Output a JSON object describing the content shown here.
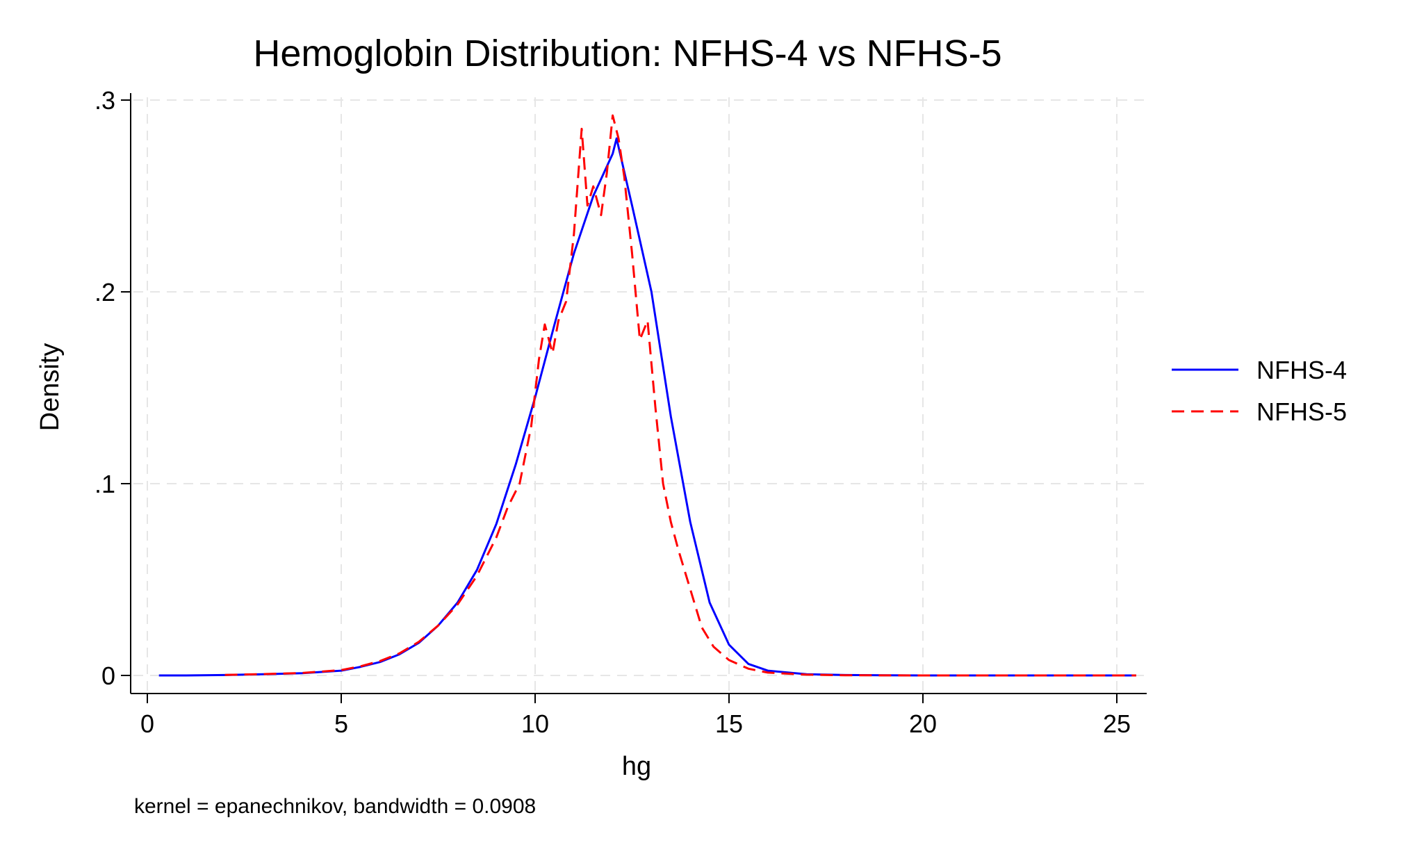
{
  "chart_data": {
    "type": "line",
    "title": "Hemoglobin Distribution: NFHS-4 vs NFHS-5",
    "xlabel": "hg",
    "ylabel": "Density",
    "note": "kernel = epanechnikov, bandwidth = 0.0908",
    "xlim": [
      0,
      25.8
    ],
    "ylim": [
      0,
      0.3
    ],
    "x_ticks": [
      0,
      5,
      10,
      15,
      20,
      25
    ],
    "x_tick_labels": [
      "0",
      "5",
      "10",
      "15",
      "20",
      "25"
    ],
    "y_ticks": [
      0,
      0.1,
      0.2,
      0.3
    ],
    "y_tick_labels": [
      "0",
      ".1",
      ".2",
      ".3"
    ],
    "grid": true,
    "legend": {
      "placement": "right"
    },
    "series": [
      {
        "name": "NFHS-4",
        "color": "#0000ff",
        "dash": "solid",
        "x": [
          0.3,
          1.0,
          2.0,
          3.0,
          4.0,
          5.0,
          5.5,
          6.0,
          6.5,
          7.0,
          7.5,
          8.0,
          8.5,
          9.0,
          9.5,
          10.0,
          10.5,
          11.0,
          11.5,
          12.0,
          12.1,
          12.5,
          13.0,
          13.5,
          14.0,
          14.5,
          15.0,
          15.5,
          16.0,
          17.0,
          18.0,
          20.0,
          22.0,
          25.5
        ],
        "y": [
          0.0,
          0.0,
          0.0002,
          0.0006,
          0.0012,
          0.0025,
          0.0045,
          0.007,
          0.011,
          0.017,
          0.026,
          0.038,
          0.055,
          0.079,
          0.11,
          0.145,
          0.183,
          0.22,
          0.25,
          0.272,
          0.28,
          0.245,
          0.2,
          0.135,
          0.08,
          0.038,
          0.016,
          0.006,
          0.0025,
          0.0006,
          0.0002,
          0.0,
          0.0,
          0.0
        ]
      },
      {
        "name": "NFHS-5",
        "color": "#ff0000",
        "dash": "dashed",
        "x": [
          2.0,
          3.0,
          4.0,
          5.0,
          5.5,
          6.0,
          6.5,
          7.0,
          7.5,
          8.0,
          8.5,
          9.0,
          9.3,
          9.6,
          9.9,
          10.1,
          10.25,
          10.45,
          10.6,
          10.8,
          11.0,
          11.2,
          11.35,
          11.5,
          11.7,
          11.85,
          12.0,
          12.15,
          12.3,
          12.5,
          12.7,
          12.9,
          13.1,
          13.3,
          13.5,
          13.7,
          14.0,
          14.3,
          14.6,
          15.0,
          15.5,
          16.0,
          17.0,
          18.0,
          20.0,
          22.0,
          25.5
        ],
        "y": [
          0.0003,
          0.0007,
          0.0013,
          0.0028,
          0.0048,
          0.0075,
          0.0115,
          0.0175,
          0.026,
          0.037,
          0.052,
          0.072,
          0.088,
          0.1,
          0.13,
          0.165,
          0.183,
          0.168,
          0.185,
          0.195,
          0.23,
          0.285,
          0.245,
          0.255,
          0.24,
          0.262,
          0.292,
          0.28,
          0.26,
          0.22,
          0.175,
          0.185,
          0.14,
          0.1,
          0.08,
          0.065,
          0.045,
          0.025,
          0.015,
          0.008,
          0.0035,
          0.0015,
          0.0004,
          0.0001,
          0.0,
          0.0,
          0.0
        ]
      }
    ]
  }
}
